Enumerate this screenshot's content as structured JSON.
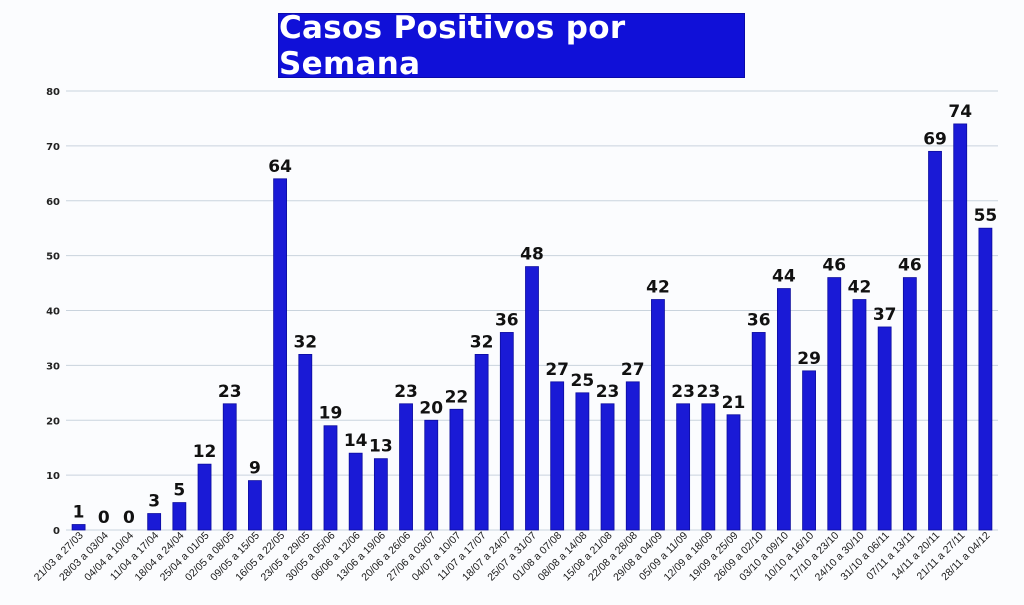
{
  "colors": {
    "bar": "#1a1ad6",
    "bar_edge": "#0c0c9e",
    "title_bg": "#1010d8",
    "title_text": "#ffffff",
    "grid": "#c9d3dd"
  },
  "chart_data": {
    "type": "bar",
    "title": "Casos Positivos por Semana",
    "xlabel": "",
    "ylabel": "",
    "ylim": [
      0,
      80
    ],
    "yticks": [
      0,
      10,
      20,
      30,
      40,
      50,
      60,
      70,
      80
    ],
    "grid": true,
    "legend": "none",
    "data_labels": true,
    "categories": [
      "21/03 a 27/03",
      "28/03 a 03/04",
      "04/04 a 10/04",
      "11/04 a 17/04",
      "18/04 a 24/04",
      "25/04 a 01/05",
      "02/05 a 08/05",
      "09/05 a 15/05",
      "16/05 a 22/05",
      "23/05 a 29/05",
      "30/05 a 05/06",
      "06/06 a 12/06",
      "13/06 a 19/06",
      "20/06 a 26/06",
      "27/06 a 03/07",
      "04/07 a 10/07",
      "11/07 a 17/07",
      "18/07 a 24/07",
      "25/07 a 31/07",
      "01/08 a 07/08",
      "08/08 a 14/08",
      "15/08 a 21/08",
      "22/08 a 28/08",
      "29/08 a 04/09",
      "05/09 a 11/09",
      "12/09 a 18/09",
      "19/09 a 25/09",
      "26/09 a 02/10",
      "03/10 a 09/10",
      "10/10 a 16/10",
      "17/10 a 23/10",
      "24/10 a 30/10",
      "31/10 a 06/11",
      "07/11 a 13/11",
      "14/11 a 20/11",
      "21/11 a 27/11",
      "28/11 a 04/12"
    ],
    "values": [
      1,
      0,
      0,
      3,
      5,
      12,
      23,
      9,
      64,
      32,
      19,
      14,
      13,
      23,
      20,
      22,
      32,
      36,
      48,
      27,
      25,
      23,
      27,
      42,
      23,
      23,
      21,
      36,
      44,
      29,
      46,
      42,
      37,
      46,
      69,
      74,
      55
    ]
  }
}
